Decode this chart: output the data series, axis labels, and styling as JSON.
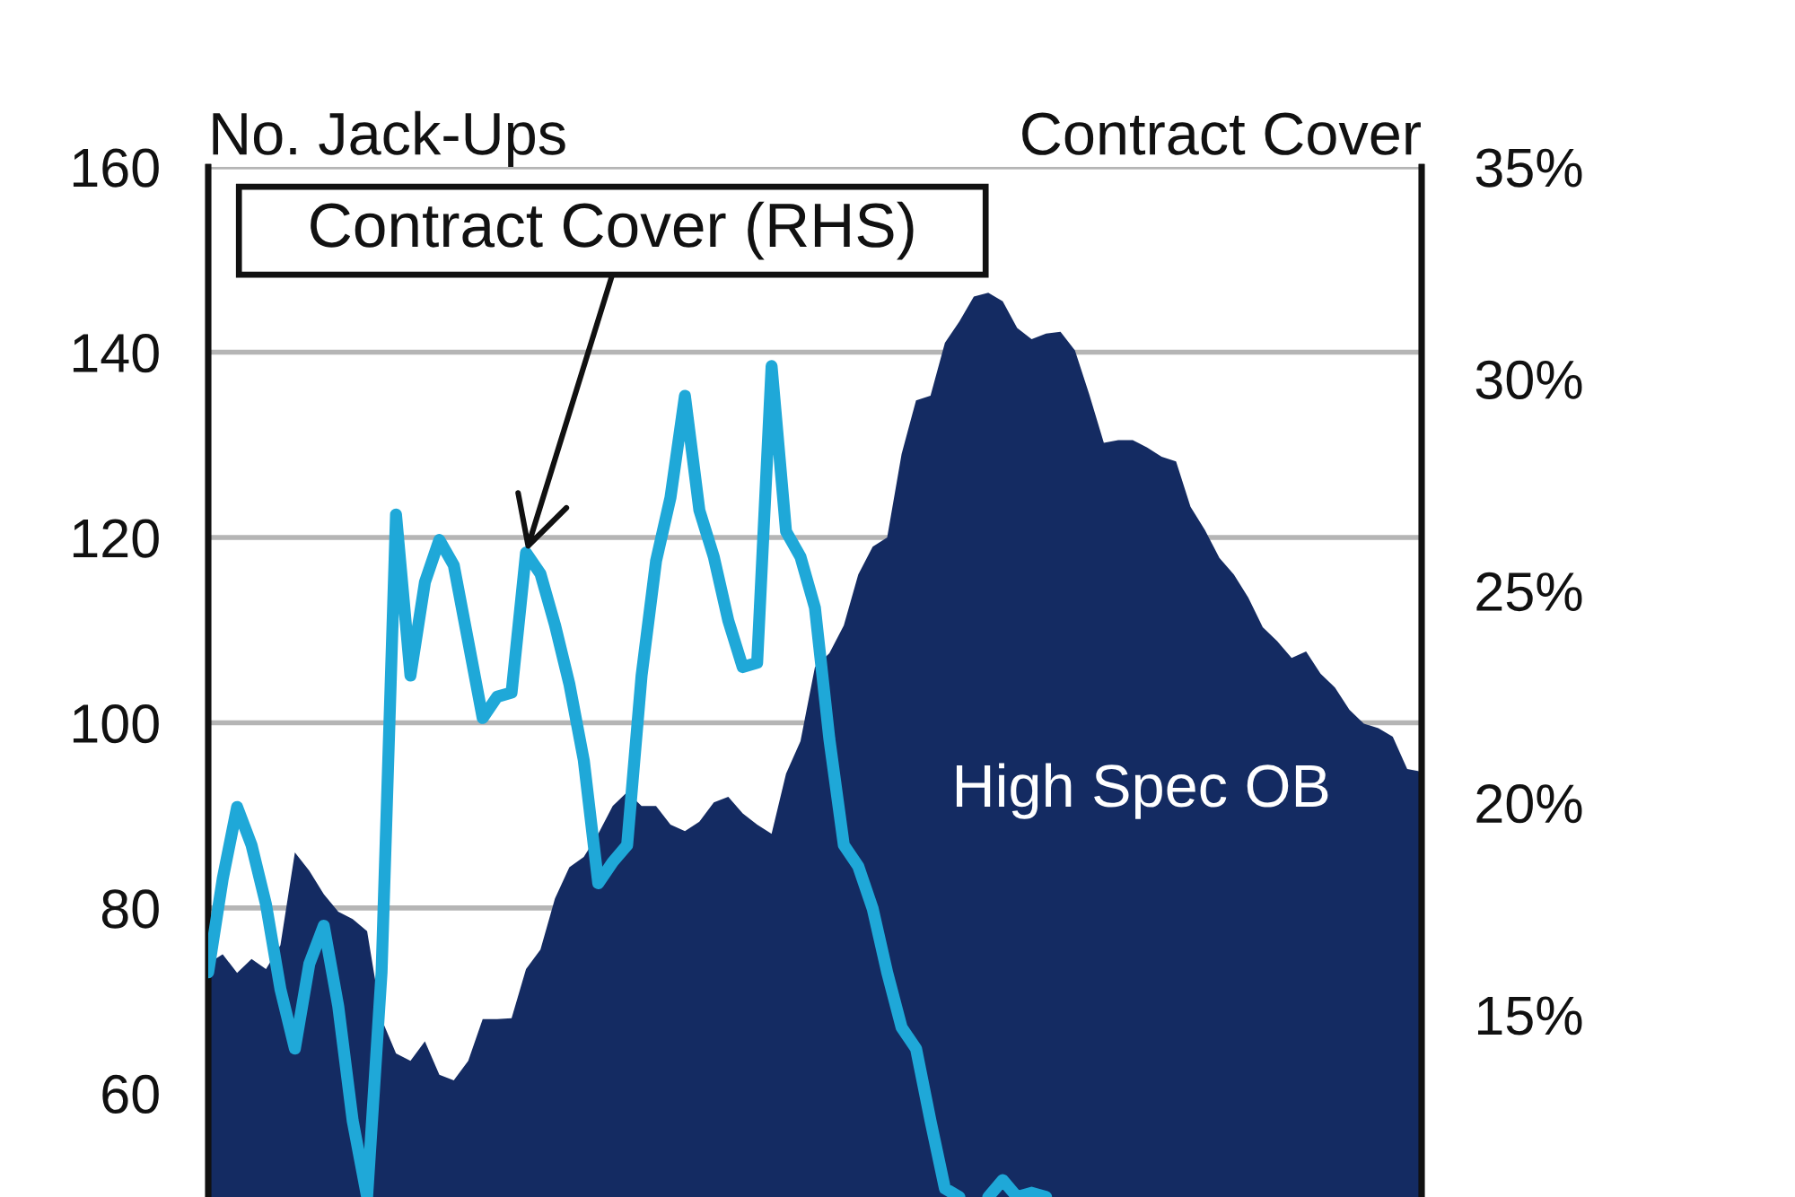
{
  "chart_data": {
    "type": "area",
    "ylabel": "No. Jack-Ups",
    "y2label": "Contract Cover",
    "categories": [
      null,
      null,
      null,
      null,
      null,
      null,
      null,
      null,
      null,
      null,
      null,
      null,
      null,
      null,
      null,
      null,
      null,
      null,
      null,
      null,
      null,
      null,
      null,
      null,
      null,
      null,
      null,
      null,
      null,
      null,
      null,
      null,
      null,
      null,
      null,
      null,
      null,
      null,
      null,
      null,
      null,
      null,
      null,
      null,
      null,
      null,
      null,
      null,
      null,
      null,
      null,
      null,
      null,
      null,
      null,
      null,
      null,
      null,
      null,
      null,
      null,
      null,
      null,
      null,
      null,
      null,
      null,
      null,
      null,
      null,
      null,
      null,
      null,
      null,
      null,
      null,
      null,
      null,
      null,
      null,
      null,
      null,
      null,
      null,
      null
    ],
    "series": [
      {
        "name": "High Spec OB",
        "color": "#142b62",
        "values": [
          74,
          75,
          73,
          74.5,
          73.4,
          76,
          86,
          84,
          81.5,
          79.6,
          78.8,
          77.5,
          68,
          64.3,
          63.5,
          65.6,
          62,
          61.4,
          63.5,
          68,
          68,
          68.1,
          73.4,
          75.5,
          81,
          84.4,
          85.5,
          88,
          91,
          92.5,
          91,
          91,
          89,
          88.3,
          89.3,
          91.4,
          92,
          90.2,
          89,
          88,
          94.5,
          98,
          106,
          107.5,
          110.5,
          116,
          119,
          120,
          129,
          134.8,
          135.3,
          141,
          143.3,
          146,
          146.4,
          145.5,
          142.6,
          141.4,
          142,
          142.2,
          140.2,
          135.4,
          130.2,
          130.5,
          130.5,
          129.7,
          128.7,
          128.2,
          123.3,
          120.8,
          117.8,
          116,
          113.5,
          110.3,
          108.8,
          107,
          107.7,
          105.3,
          103.8,
          101.4,
          99.9,
          99.4,
          98.5,
          95,
          94.7
        ]
      },
      {
        "name": "Contract Cover (RHS)",
        "type": "line",
        "axis": "y2",
        "color": "#1fa8d8",
        "values": [
          16.0,
          18.2,
          19.9,
          19.0,
          17.6,
          15.6,
          14.2,
          16.2,
          17.1,
          15.2,
          12.5,
          10.7,
          16,
          26.8,
          23.0,
          25.2,
          26.2,
          25.6,
          23.8,
          22.0,
          22.5,
          22.6,
          25.9,
          25.4,
          24.2,
          22.8,
          21.0,
          18.1,
          18.6,
          19.0,
          23.0,
          25.7,
          27.2,
          29.6,
          26.9,
          25.8,
          24.3,
          23.2,
          23.3,
          30.3,
          26.4,
          25.8,
          24.6,
          21.5,
          19.0,
          18.5,
          17.5,
          16.0,
          14.7,
          14.2,
          12.5,
          10.9,
          10.7,
          null,
          10.7,
          11.1,
          10.7,
          10.8,
          10.7,
          null,
          null,
          null,
          null,
          null,
          null,
          null,
          null,
          null,
          null,
          null,
          null,
          null,
          null,
          null,
          null,
          null,
          null,
          null,
          null,
          null,
          null,
          null,
          null,
          null,
          null
        ]
      }
    ],
    "ylim": [
      48.8,
      160
    ],
    "yticks": [
      60,
      80,
      100,
      120,
      140,
      160
    ],
    "y2lim": [
      10.7,
      35
    ],
    "y2ticks": [
      {
        "value": 15,
        "label": "15%"
      },
      {
        "value": 20,
        "label": "20%"
      },
      {
        "value": 25,
        "label": "25%"
      },
      {
        "value": 30,
        "label": "30%"
      },
      {
        "value": 35,
        "label": "35%"
      }
    ],
    "grid": "y"
  }
}
